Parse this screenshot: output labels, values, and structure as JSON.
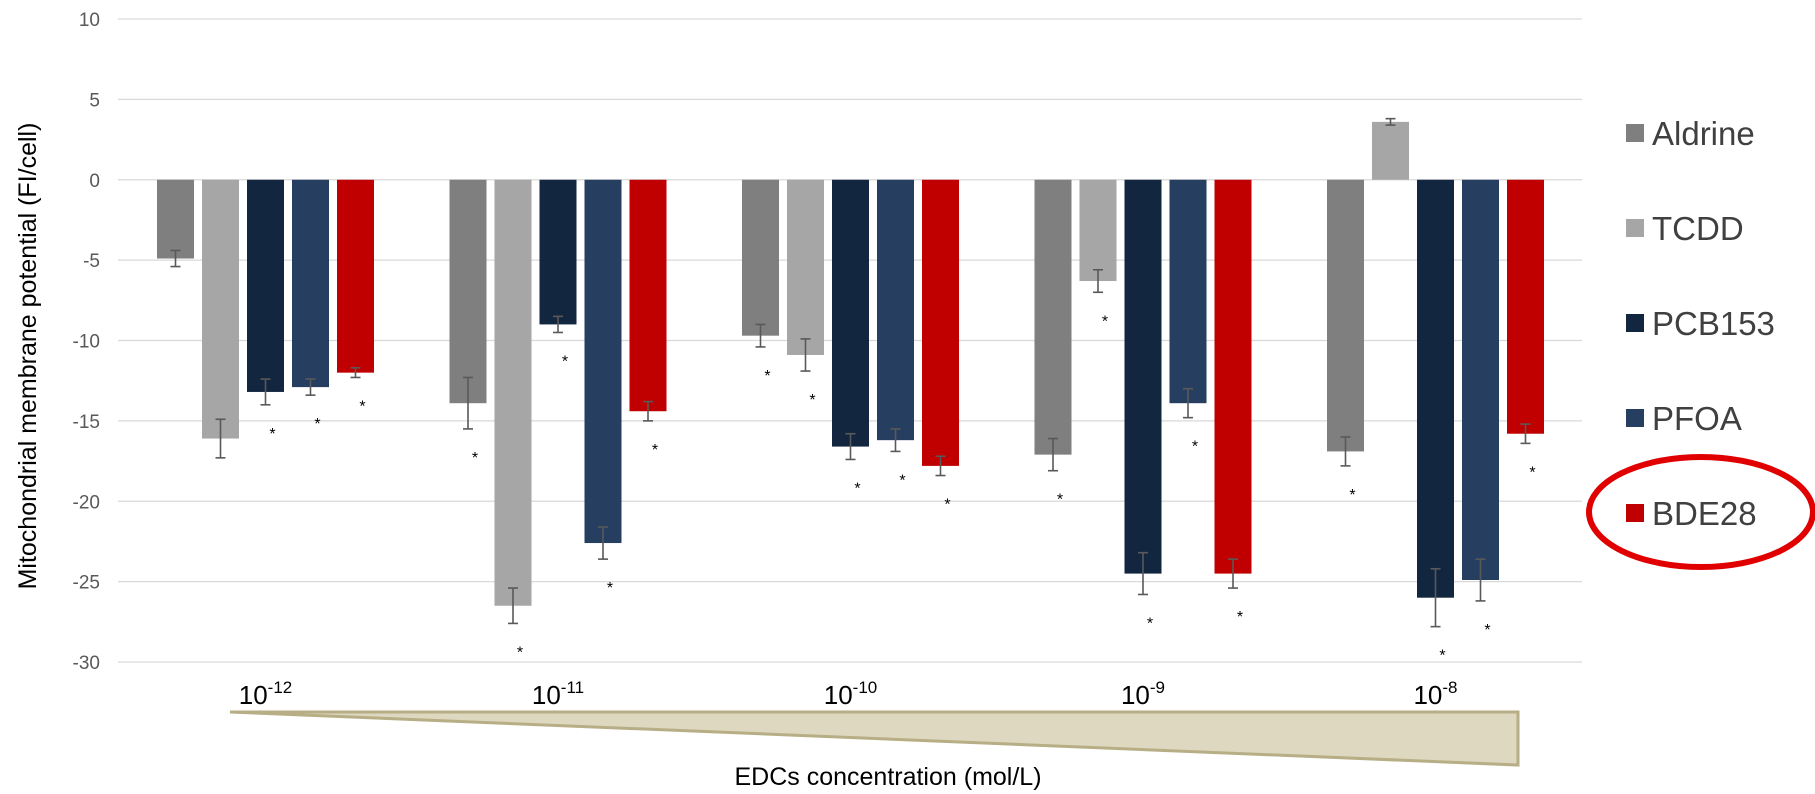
{
  "chart_data": {
    "type": "bar",
    "ylabel": "Mitochondrial membrane potential (FI/cell)",
    "xlabel": "EDCs concentration (mol/L)",
    "ylim": [
      -30,
      10
    ],
    "yticks": [
      10,
      5,
      0,
      -5,
      -10,
      -15,
      -20,
      -25,
      -30
    ],
    "grid": true,
    "legend_position": "right",
    "categories": [
      {
        "base": "10",
        "exp": "-12"
      },
      {
        "base": "10",
        "exp": "-11"
      },
      {
        "base": "10",
        "exp": "-10"
      },
      {
        "base": "10",
        "exp": "-9"
      },
      {
        "base": "10",
        "exp": "-8"
      }
    ],
    "series": [
      {
        "name": "Aldrine",
        "color": "#7f7f7f",
        "values": [
          -4.9,
          -13.9,
          -9.7,
          -17.1,
          -16.9
        ],
        "errors": [
          0.5,
          1.6,
          0.7,
          1.0,
          0.9
        ],
        "significant": [
          false,
          true,
          true,
          true,
          true
        ]
      },
      {
        "name": "TCDD",
        "color": "#a6a6a6",
        "values": [
          -16.1,
          -26.5,
          -10.9,
          -6.3,
          3.6
        ],
        "errors": [
          1.2,
          1.1,
          1.0,
          0.7,
          0.2
        ],
        "significant": [
          false,
          true,
          true,
          true,
          false
        ]
      },
      {
        "name": "PCB153",
        "color": "#132640",
        "values": [
          -13.2,
          -9.0,
          -16.6,
          -24.5,
          -26.0
        ],
        "errors": [
          0.8,
          0.5,
          0.8,
          1.3,
          1.8
        ],
        "significant": [
          true,
          true,
          true,
          true,
          true
        ]
      },
      {
        "name": "PFOA",
        "color": "#263f61",
        "values": [
          -12.9,
          -22.6,
          -16.2,
          -13.9,
          -24.9
        ],
        "errors": [
          0.5,
          1.0,
          0.7,
          0.9,
          1.3
        ],
        "significant": [
          true,
          true,
          true,
          true,
          true
        ]
      },
      {
        "name": "BDE28",
        "color": "#c00000",
        "values": [
          -12.0,
          -14.4,
          -17.8,
          -24.5,
          -15.8
        ],
        "errors": [
          0.3,
          0.6,
          0.6,
          0.9,
          0.6
        ],
        "significant": [
          true,
          true,
          true,
          true,
          true
        ]
      }
    ],
    "significance_marker": "*",
    "highlight": {
      "series": "BDE28",
      "color": "#e00000"
    },
    "wedge_color": "#ded8c0",
    "wedge_stroke": "#b7ae86"
  }
}
